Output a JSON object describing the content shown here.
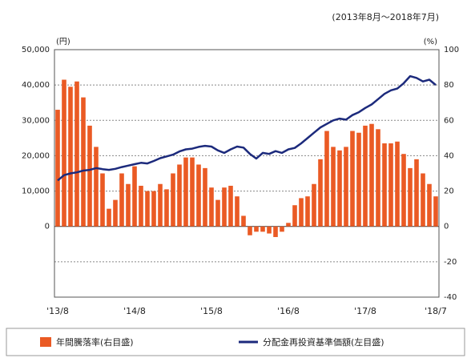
{
  "chart_data": {
    "type": "combo",
    "subtitle": "(2013年8月～2018年7月)",
    "y_unit": "(円)",
    "y2_unit": "(%)",
    "categories": [
      "'13/8",
      null,
      null,
      null,
      null,
      null,
      null,
      null,
      null,
      null,
      null,
      null,
      "'14/8",
      null,
      null,
      null,
      null,
      null,
      null,
      null,
      null,
      null,
      null,
      null,
      "'15/8",
      null,
      null,
      null,
      null,
      null,
      null,
      null,
      null,
      null,
      null,
      null,
      "'16/8",
      null,
      null,
      null,
      null,
      null,
      null,
      null,
      null,
      null,
      null,
      null,
      "'17/8",
      null,
      null,
      null,
      null,
      null,
      null,
      null,
      null,
      null,
      null,
      "'18/7"
    ],
    "series": [
      {
        "name": "年間騰落率(右目盛)",
        "type": "bar",
        "axis": "y2",
        "color": "#ea5a24",
        "values": [
          66,
          83,
          79,
          82,
          73,
          57,
          45,
          30,
          10,
          15,
          30,
          24,
          34,
          23,
          20,
          20,
          24,
          21,
          30,
          35,
          39,
          39,
          35,
          33,
          22,
          15,
          22,
          23,
          17,
          6,
          -5,
          -3,
          -3,
          -4,
          -6,
          -3,
          2,
          12,
          16,
          17,
          24,
          38,
          54,
          45,
          43,
          45,
          54,
          53,
          57,
          58,
          55,
          47,
          47,
          48,
          41,
          33,
          38,
          30,
          24,
          17
        ]
      },
      {
        "name": "分配金再投資基準価額(左目盛)",
        "type": "line",
        "color": "#1c2a7c",
        "values": [
          13000,
          14500,
          15000,
          15300,
          15800,
          16000,
          16500,
          16200,
          16000,
          16300,
          16800,
          17200,
          17600,
          18000,
          17800,
          18500,
          19300,
          19800,
          20300,
          21200,
          21800,
          22000,
          22500,
          22800,
          22600,
          21500,
          20800,
          21800,
          22600,
          22300,
          20500,
          19200,
          20800,
          20500,
          21300,
          20800,
          21800,
          22200,
          23500,
          25000,
          26500,
          28000,
          29000,
          30000,
          30500,
          30200,
          31500,
          32300,
          33500,
          34500,
          36000,
          37500,
          38500,
          39000,
          40500,
          42500,
          42000,
          41000,
          41500,
          40000
        ]
      }
    ],
    "ylim": [
      -20000,
      50000
    ],
    "yticks": [
      0,
      {
        "value": 10000,
        "label": "10,000"
      },
      {
        "value": 20000,
        "label": "20,000"
      },
      {
        "value": 30000,
        "label": "30,000"
      },
      {
        "value": 40000,
        "label": "40,000"
      },
      {
        "value": 50000,
        "label": "50,000"
      }
    ],
    "y2lim": [
      -40,
      100
    ],
    "y2ticks": [
      -40,
      -20,
      0,
      20,
      40,
      60,
      80,
      100
    ],
    "grid": true
  }
}
